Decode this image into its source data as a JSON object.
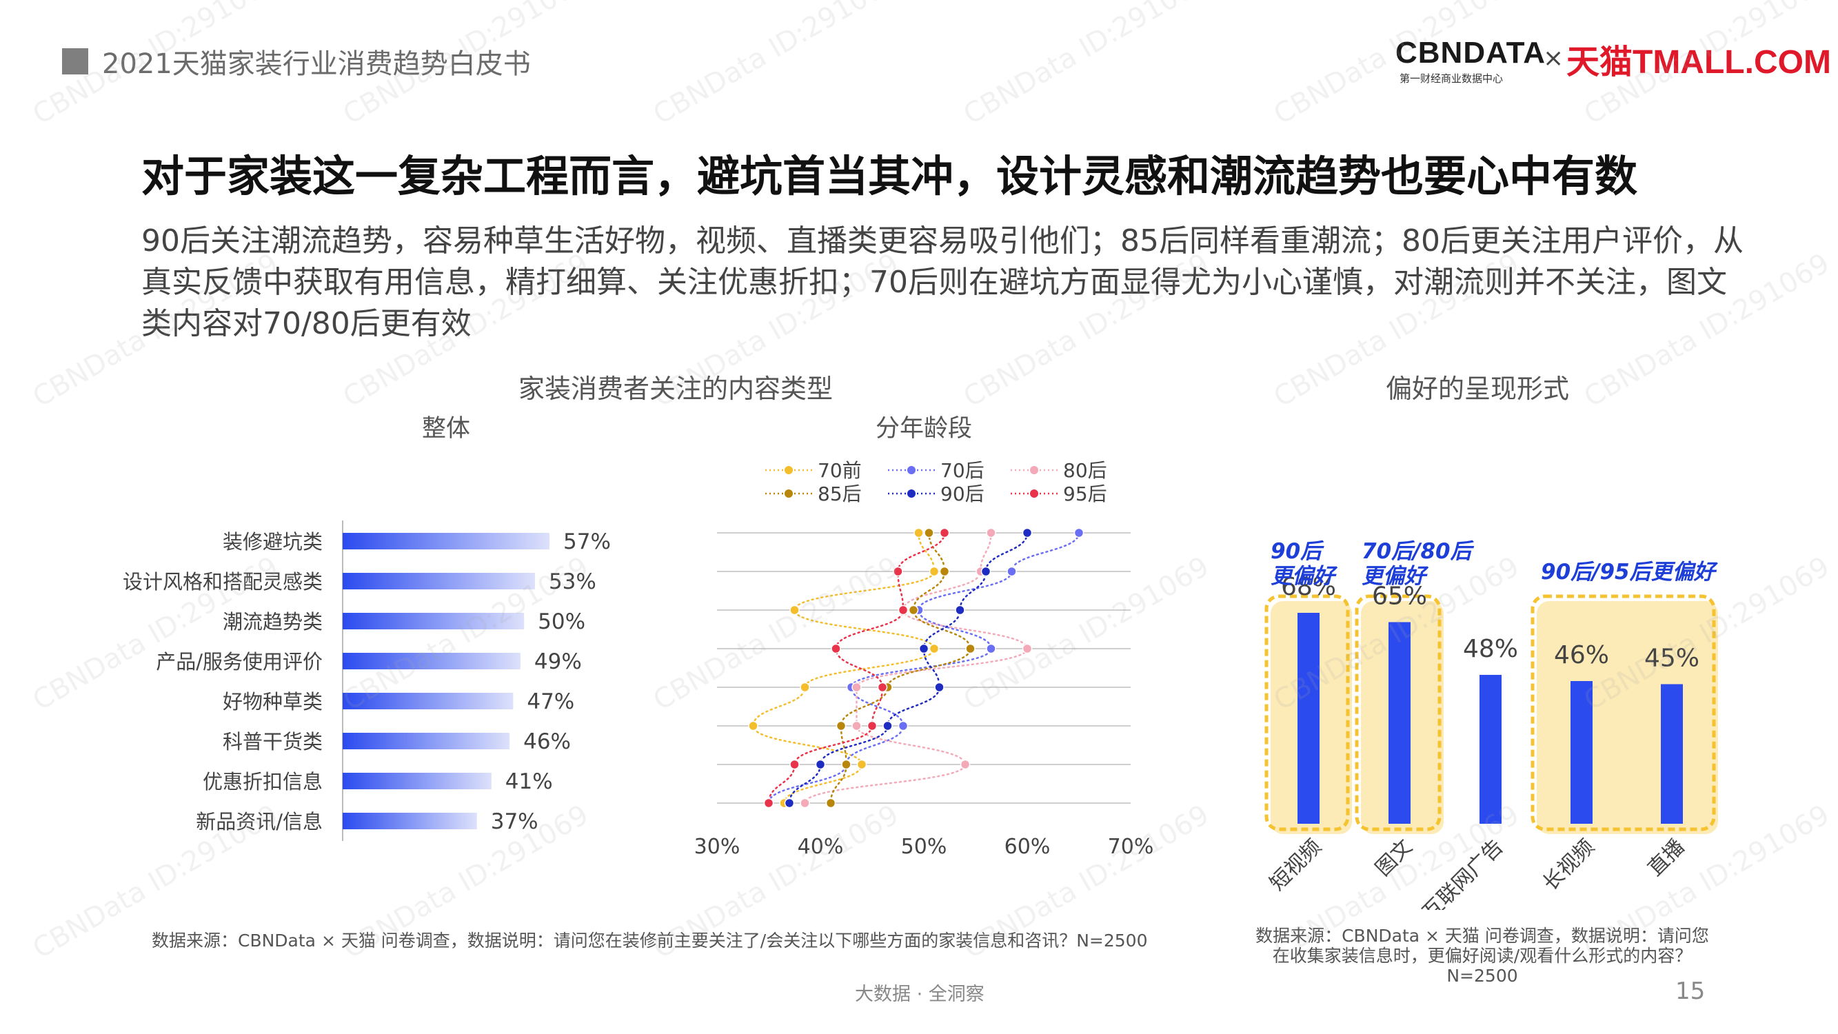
{
  "header": {
    "title": "2021天猫家装行业消费趋势白皮书",
    "logo_cbn": "CBNDATA",
    "logo_cbn_sub": "第一财经商业数据中心",
    "logo_x": "×",
    "logo_tmall": "天猫TMALL.COM"
  },
  "main_title": "对于家装这一复杂工程而言，避坑首当其冲，设计灵感和潮流趋势也要心中有数",
  "description": "90后关注潮流趋势，容易种草生活好物，视频、直播类更容易吸引他们；85后同样看重潮流；80后更关注用户评价，从真实反馈中获取有用信息，精打细算、关注优惠折扣；70后则在避坑方面显得尤为小心谨慎，对潮流则并不关注，图文类内容对70/80后更有效",
  "left_section_title": "家装消费者关注的内容类型",
  "right_section_title": "偏好的呈现形式",
  "source_left": "数据来源：CBNData × 天猫 问卷调查，数据说明：请问您在装修前主要关注了/会关注以下哪些方面的家装信息和咨讯？N=2500",
  "source_right": "数据来源：CBNData × 天猫 问卷调查，数据说明：请问您在收集家装信息时，更偏好阅读/观看什么形式的内容？N=2500",
  "footer_center": "大数据 · 全洞察",
  "page_number": "15",
  "watermark": "CBNData ID:291069",
  "colors": {
    "bar_blue": "#2b4bef",
    "highlight_yellow": "#f5c230"
  },
  "chart_data": [
    {
      "type": "bar",
      "orientation": "horizontal",
      "title": "整体",
      "categories": [
        "装修避坑类",
        "设计风格和搭配灵感类",
        "潮流趋势类",
        "产品/服务使用评价",
        "好物种草类",
        "科普干货类",
        "优惠折扣信息",
        "新品资讯/信息"
      ],
      "values": [
        57,
        53,
        50,
        49,
        47,
        46,
        41,
        37
      ],
      "value_labels": [
        "57%",
        "53%",
        "50%",
        "49%",
        "47%",
        "46%",
        "41%",
        "37%"
      ],
      "xlim": [
        0,
        60
      ]
    },
    {
      "type": "line",
      "title": "分年龄段",
      "orientation": "horizontal",
      "categories": [
        "装修避坑类",
        "设计风格和搭配灵感类",
        "潮流趋势类",
        "产品/服务使用评价",
        "好物种草类",
        "科普干货类",
        "优惠折扣信息",
        "新品资讯/信息"
      ],
      "xlim": [
        30,
        70
      ],
      "x_ticks": [
        "30%",
        "40%",
        "50%",
        "60%",
        "70%"
      ],
      "legend_position": "top",
      "series": [
        {
          "name": "70前",
          "color": "#f3bd2b",
          "values": [
            49.5,
            51,
            37.5,
            51,
            38.5,
            33.5,
            44,
            36.5
          ]
        },
        {
          "name": "70后",
          "color": "#6a6ef2",
          "values": [
            65,
            58.5,
            49.5,
            56.5,
            43,
            48,
            42.5,
            35
          ]
        },
        {
          "name": "80后",
          "color": "#f4a9b8",
          "values": [
            56.5,
            55.5,
            48,
            60,
            43.5,
            43.5,
            54,
            38.5
          ]
        },
        {
          "name": "85后",
          "color": "#b8860b",
          "values": [
            50.5,
            52,
            49,
            54.5,
            46.5,
            42,
            42.5,
            41
          ]
        },
        {
          "name": "90后",
          "color": "#1f2cc2",
          "values": [
            60,
            56,
            53.5,
            50,
            51.5,
            46.5,
            40,
            37
          ]
        },
        {
          "name": "95后",
          "color": "#e8334a",
          "values": [
            52,
            47.5,
            48,
            41.5,
            46,
            45,
            37.5,
            35
          ]
        }
      ]
    },
    {
      "type": "bar",
      "categories": [
        "短视频",
        "图文",
        "互联网广告",
        "长视频",
        "直播"
      ],
      "values": [
        68,
        65,
        48,
        46,
        45
      ],
      "value_labels": [
        "68%",
        "65%",
        "48%",
        "46%",
        "45%"
      ],
      "ylim": [
        0,
        80
      ],
      "annotations": [
        {
          "text": "90后\n更偏好",
          "categories": [
            "短视频"
          ]
        },
        {
          "text": "70后/80后\n更偏好",
          "categories": [
            "图文"
          ]
        },
        {
          "text": "90后/95后更偏好",
          "categories": [
            "长视频",
            "直播"
          ]
        }
      ]
    }
  ]
}
